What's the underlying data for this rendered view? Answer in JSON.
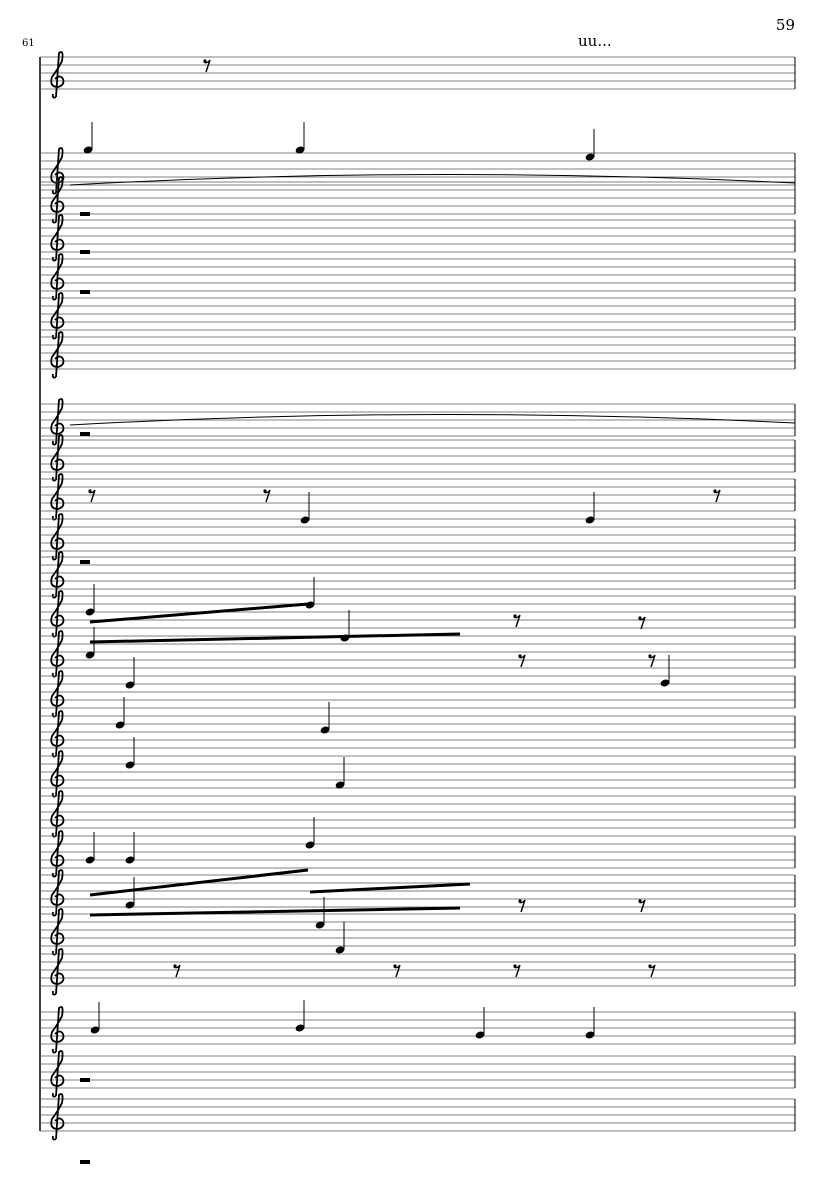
{
  "page_number": "59",
  "measure_number": "61",
  "text_marking": "uu...",
  "staff_count": 25,
  "clef": "treble-clef"
}
